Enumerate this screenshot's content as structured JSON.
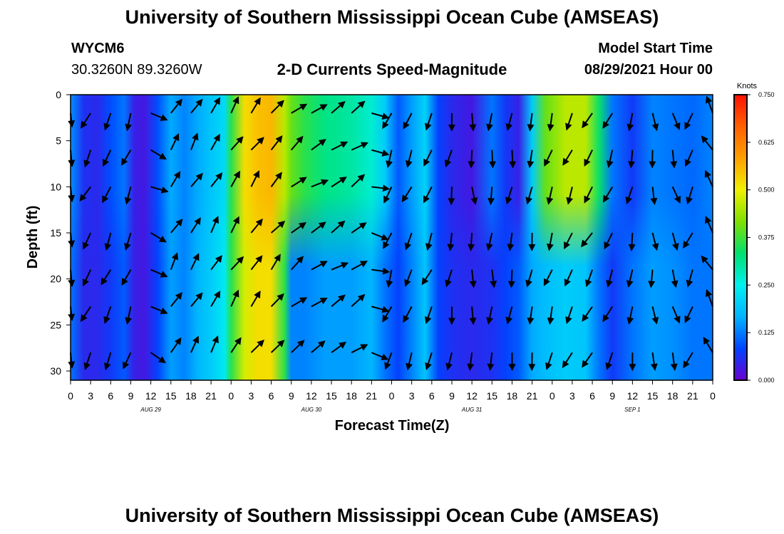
{
  "page": {
    "title_top": "University of Southern Mississippi Ocean Cube (AMSEAS)",
    "title_bottom": "University of Southern Mississippi Ocean Cube (AMSEAS)",
    "station_id": "WYCM6",
    "station_coords": "30.3260N  89.3260W",
    "product_title": "2-D Currents Speed-Magnitude",
    "model_start_label": "Model Start Time",
    "model_start_value": "08/29/2021 Hour 00"
  },
  "chart_data": {
    "type": "heatmap",
    "title": "2-D Currents Speed-Magnitude",
    "xlabel": "Forecast Time(Z)",
    "ylabel": "Depth (ft)",
    "x_hours_range": [
      0,
      96
    ],
    "y_depth_range_ft": [
      0,
      31
    ],
    "y_inverted": true,
    "x_tick_labels": [
      "0",
      "3",
      "6",
      "9",
      "12",
      "15",
      "18",
      "21",
      "0",
      "3",
      "6",
      "9",
      "12",
      "15",
      "18",
      "21",
      "0",
      "3",
      "6",
      "9",
      "12",
      "15",
      "18",
      "21",
      "0",
      "3",
      "6",
      "9",
      "12",
      "15",
      "18",
      "21",
      "0"
    ],
    "date_labels": [
      {
        "label": "AUG 29",
        "hour": 12
      },
      {
        "label": "AUG 30",
        "hour": 36
      },
      {
        "label": "AUG 31",
        "hour": 60
      },
      {
        "label": "SEP 1",
        "hour": 84
      }
    ],
    "y_ticks": [
      0,
      5,
      10,
      15,
      20,
      25,
      30
    ],
    "colorbar": {
      "unit": "Knots",
      "min": 0.0,
      "max": 0.75,
      "tick_labels": [
        "0.000",
        "0.125",
        "0.250",
        "0.375",
        "0.500",
        "0.625",
        "0.750"
      ],
      "colors": [
        "#6a00d0",
        "#0044ff",
        "#00b4ff",
        "#00f0f0",
        "#00e070",
        "#80e000",
        "#f0f000",
        "#ffa000",
        "#ff6000",
        "#ff1000"
      ]
    },
    "speed_profile_knots_by_hour": [
      [
        0,
        0.14,
        0.12
      ],
      [
        2,
        0.06,
        0.05
      ],
      [
        4,
        0.05,
        0.05
      ],
      [
        6,
        0.09,
        0.07
      ],
      [
        8,
        0.12,
        0.1
      ],
      [
        9.5,
        0.04,
        0.04
      ],
      [
        11,
        0.03,
        0.03
      ],
      [
        13,
        0.09,
        0.08
      ],
      [
        15,
        0.16,
        0.15
      ],
      [
        17,
        0.13,
        0.13
      ],
      [
        19,
        0.16,
        0.17
      ],
      [
        21,
        0.19,
        0.2
      ],
      [
        23,
        0.22,
        0.24
      ],
      [
        24,
        0.36,
        0.36
      ],
      [
        26,
        0.52,
        0.48
      ],
      [
        28,
        0.55,
        0.52
      ],
      [
        30,
        0.56,
        0.52
      ],
      [
        32,
        0.46,
        0.36
      ],
      [
        33,
        0.4,
        0.13
      ],
      [
        35,
        0.36,
        0.13
      ],
      [
        38,
        0.32,
        0.15
      ],
      [
        42,
        0.3,
        0.15
      ],
      [
        45,
        0.27,
        0.17
      ],
      [
        47,
        0.2,
        0.12
      ],
      [
        49,
        0.1,
        0.08
      ],
      [
        51,
        0.15,
        0.13
      ],
      [
        53,
        0.21,
        0.19
      ],
      [
        55,
        0.08,
        0.08
      ],
      [
        57,
        0.05,
        0.06
      ],
      [
        60,
        0.03,
        0.05
      ],
      [
        63,
        0.12,
        0.06
      ],
      [
        65,
        0.07,
        0.08
      ],
      [
        67,
        0.04,
        0.1
      ],
      [
        69,
        0.2,
        0.16
      ],
      [
        71,
        0.4,
        0.18
      ],
      [
        74,
        0.46,
        0.2
      ],
      [
        77,
        0.46,
        0.19
      ],
      [
        79,
        0.34,
        0.12
      ],
      [
        81,
        0.12,
        0.07
      ],
      [
        84,
        0.07,
        0.12
      ],
      [
        87,
        0.13,
        0.15
      ],
      [
        90,
        0.12,
        0.14
      ],
      [
        93,
        0.11,
        0.12
      ],
      [
        96,
        0.13,
        0.12
      ]
    ],
    "arrow_hours": [
      0,
      3,
      6,
      9,
      12,
      15,
      18,
      21,
      24,
      27,
      30,
      33,
      36,
      39,
      42,
      45,
      48,
      51,
      54,
      57,
      60,
      63,
      66,
      69,
      72,
      75,
      78,
      81,
      84,
      87,
      90,
      93,
      96
    ],
    "arrow_depths_ft": [
      2,
      6,
      10,
      15,
      19,
      23,
      28
    ],
    "direction_deg_by_hour": [
      [
        0,
        210
      ],
      [
        5,
        205
      ],
      [
        11,
        200
      ],
      [
        13,
        30
      ],
      [
        22,
        32
      ],
      [
        31,
        40
      ],
      [
        35,
        60
      ],
      [
        44,
        55
      ],
      [
        47,
        200
      ],
      [
        55,
        205
      ],
      [
        59,
        175
      ],
      [
        64,
        185
      ],
      [
        69,
        190
      ],
      [
        73,
        200
      ],
      [
        79,
        210
      ],
      [
        83,
        195
      ],
      [
        88,
        170
      ],
      [
        92,
        160
      ],
      [
        96,
        330
      ]
    ]
  }
}
